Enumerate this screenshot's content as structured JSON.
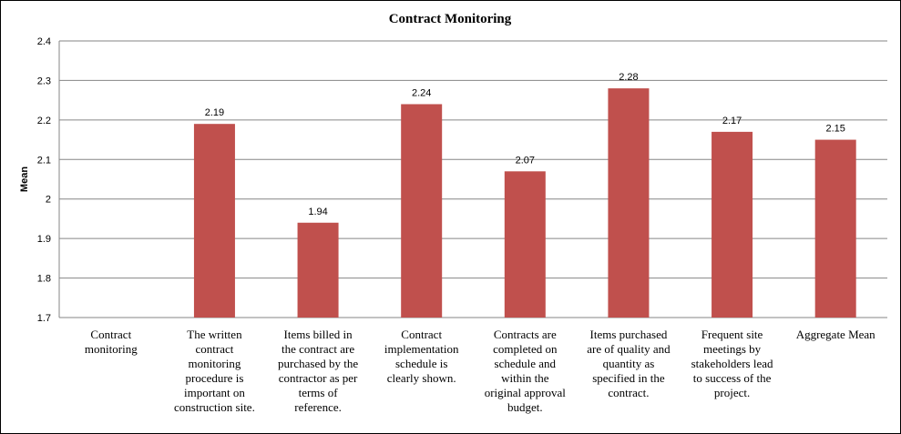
{
  "chart_data": {
    "type": "bar",
    "title": "Contract  Monitoring",
    "ylabel": "Mean",
    "xlabel": "",
    "ylim": [
      1.7,
      2.4
    ],
    "yticks": [
      "1.7",
      "1.8",
      "1.9",
      "2",
      "2.1",
      "2.2",
      "2.3",
      "2.4"
    ],
    "grid": true,
    "bar_color": "#C0504D",
    "categories": [
      [
        "Contract",
        "monitoring"
      ],
      [
        "The written",
        "contract",
        "monitoring",
        "procedure is",
        "important on",
        "construction site."
      ],
      [
        "Items billed in",
        "the contract are",
        "purchased by the",
        "contractor as per",
        "terms of",
        "reference."
      ],
      [
        "Contract",
        "implementation",
        "schedule is",
        "clearly shown."
      ],
      [
        "Contracts are",
        "completed on",
        "schedule and",
        "within the",
        "original approval",
        "budget."
      ],
      [
        "Items purchased",
        "are of quality and",
        "quantity as",
        "specified in the",
        "contract."
      ],
      [
        "Frequent site",
        "meetings by",
        "stakeholders lead",
        "to success of the",
        "project."
      ],
      [
        "Aggregate Mean"
      ]
    ],
    "values": [
      null,
      2.19,
      1.94,
      2.24,
      2.07,
      2.28,
      2.17,
      2.15
    ],
    "data_labels": [
      "",
      "2.19",
      "1.94",
      "2.24",
      "2.07",
      "2.28",
      "2.17",
      "2.15"
    ]
  }
}
